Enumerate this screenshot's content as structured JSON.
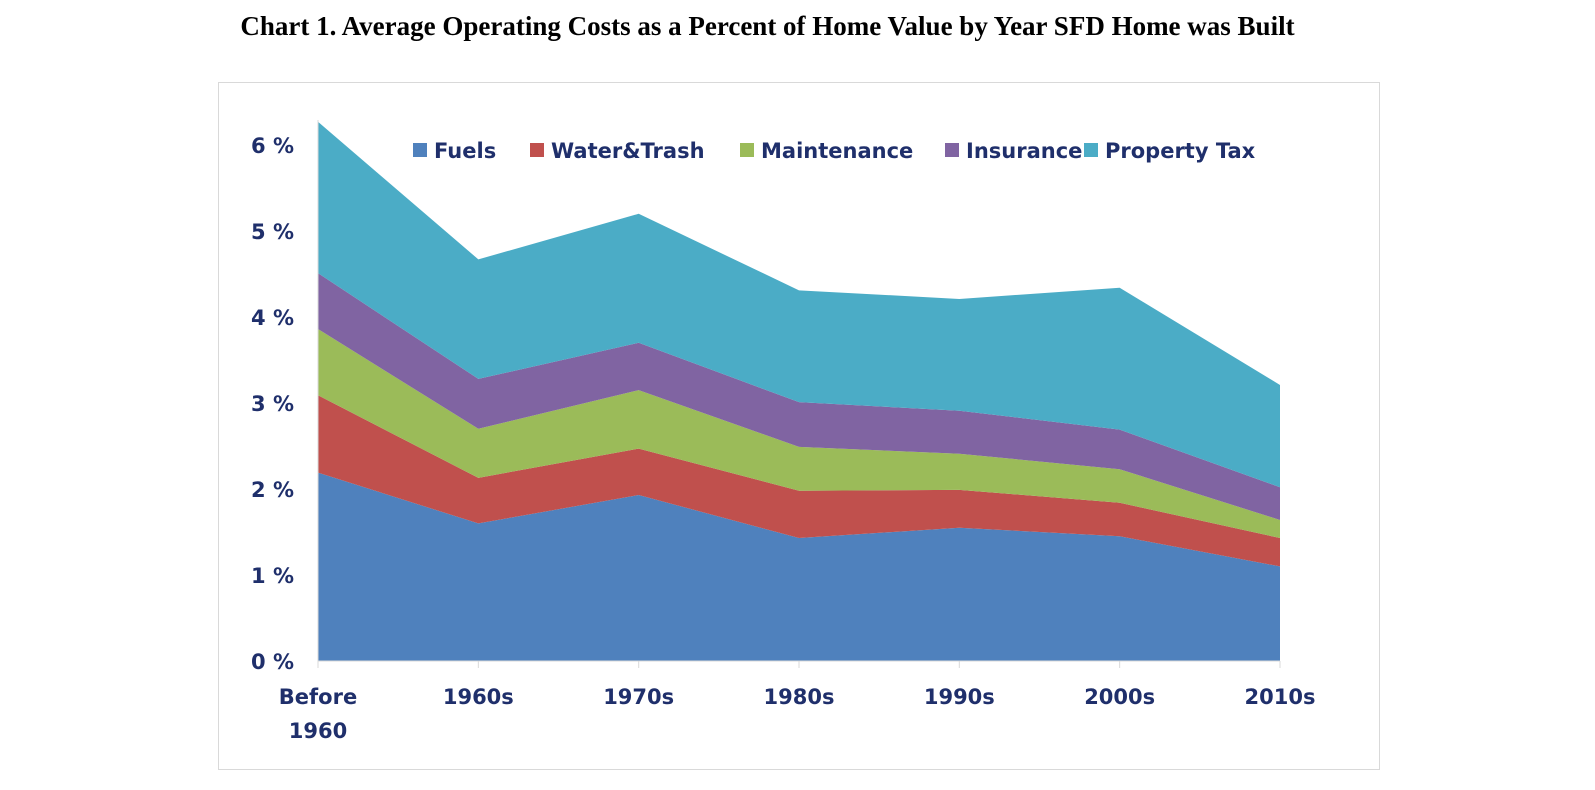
{
  "chart_data": {
    "type": "area",
    "stacked": true,
    "title": "Chart 1. Average Operating Costs as a Percent of Home Value by Year SFD Home was Built",
    "categories": [
      "Before 1960",
      "1960s",
      "1970s",
      "1980s",
      "1990s",
      "2000s",
      "2010s"
    ],
    "ylim": [
      0,
      6
    ],
    "yticks": [
      "0 %",
      "1 %",
      "2 %",
      "3 %",
      "4 %",
      "5 %",
      "6 %"
    ],
    "grid": false,
    "legend_position": "top",
    "series": [
      {
        "name": "Fuels",
        "color": "#4f81bd",
        "values": [
          2.19,
          1.6,
          1.93,
          1.43,
          1.55,
          1.45,
          1.1
        ]
      },
      {
        "name": "Water&Trash",
        "color": "#c0504d",
        "values": [
          0.9,
          0.53,
          0.54,
          0.55,
          0.44,
          0.39,
          0.33
        ]
      },
      {
        "name": "Maintenance",
        "color": "#9bbb59",
        "values": [
          0.77,
          0.57,
          0.68,
          0.51,
          0.42,
          0.39,
          0.21
        ]
      },
      {
        "name": "Insurance",
        "color": "#8064a2",
        "values": [
          0.65,
          0.58,
          0.55,
          0.52,
          0.5,
          0.46,
          0.38
        ]
      },
      {
        "name": "Property Tax",
        "color": "#4bacc6",
        "values": [
          1.76,
          1.39,
          1.5,
          1.3,
          1.3,
          1.65,
          1.19
        ]
      }
    ]
  }
}
